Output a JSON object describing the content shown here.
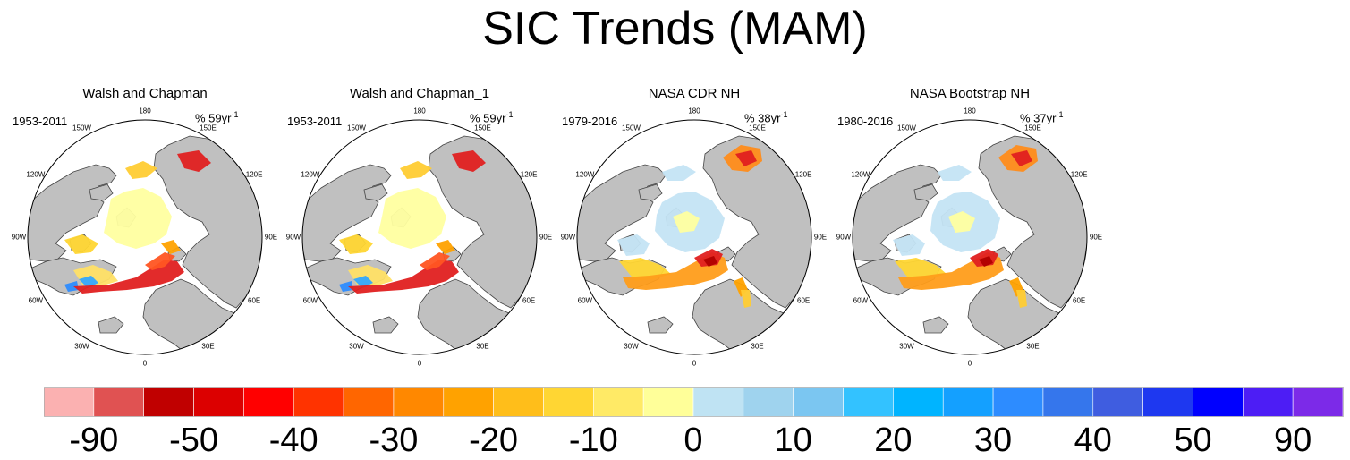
{
  "figure": {
    "title": "SIC Trends (MAM)"
  },
  "panels": [
    {
      "title": "Walsh and Chapman",
      "period": "1953-2011",
      "rate_value": "% 59yr",
      "rate_exp": "-1",
      "style": "wc"
    },
    {
      "title": "Walsh and Chapman_1",
      "period": "1953-2011",
      "rate_value": "% 59yr",
      "rate_exp": "-1",
      "style": "wc"
    },
    {
      "title": "NASA CDR NH",
      "period": "1979-2016",
      "rate_value": "% 38yr",
      "rate_exp": "-1",
      "style": "nasa"
    },
    {
      "title": "NASA Bootstrap NH",
      "period": "1980-2016",
      "rate_value": "% 37yr",
      "rate_exp": "-1",
      "style": "nasa"
    }
  ],
  "longitude_labels": [
    "180",
    "150E",
    "120E",
    "90E",
    "60E",
    "30E",
    "0",
    "30W",
    "60W",
    "90W",
    "120W",
    "150W"
  ],
  "colorbar": {
    "colors": [
      "#fbb1b1",
      "#e05252",
      "#c00000",
      "#dc0000",
      "#ff0000",
      "#ff3300",
      "#ff6600",
      "#ff8800",
      "#ffa200",
      "#ffbe1a",
      "#ffd633",
      "#ffea66",
      "#ffff99",
      "#bfe3f3",
      "#9fd3ee",
      "#7bc6f1",
      "#33c2ff",
      "#00b4ff",
      "#14a0ff",
      "#2d8cff",
      "#3576ec",
      "#3f5de0",
      "#1e38f0",
      "#0000ff",
      "#4d1df5",
      "#7c2ae8"
    ],
    "labels": [
      "-90",
      "-50",
      "-40",
      "-30",
      "-20",
      "-10",
      "0",
      "10",
      "20",
      "30",
      "40",
      "50",
      "90"
    ]
  },
  "palette": {
    "land": "#c0c0c0",
    "coast": "#444444",
    "ocean": "#ffffff",
    "no_trend": "#ffffa0",
    "increase": "#c4e4f4"
  }
}
